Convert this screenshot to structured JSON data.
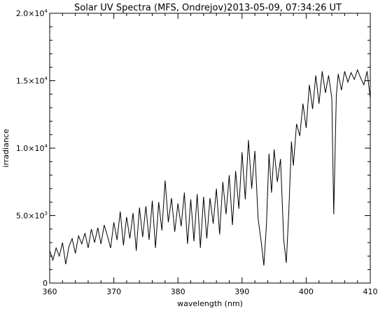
{
  "chart_data": {
    "type": "line",
    "title": "Solar UV Spectra (MFS, Ondrejov)2013-05-09, 07:34:26 UT",
    "xlabel": "wavelength (nm)",
    "ylabel": "irradiance",
    "xlim": [
      360,
      410
    ],
    "ylim": [
      0,
      20000
    ],
    "x_ticks": [
      360,
      370,
      380,
      390,
      400,
      410
    ],
    "x_tick_labels": [
      "360",
      "370",
      "380",
      "390",
      "400",
      "410"
    ],
    "y_ticks": [
      0,
      5000,
      10000,
      15000,
      20000
    ],
    "y_tick_labels": [
      {
        "mant": "0",
        "exp": ""
      },
      {
        "mant": "5.0×10",
        "exp": "3"
      },
      {
        "mant": "1.0×10",
        "exp": "4"
      },
      {
        "mant": "1.5×10",
        "exp": "4"
      },
      {
        "mant": "2.0×10",
        "exp": "4"
      }
    ],
    "grid": false,
    "legend": "none",
    "line_color": "#000000",
    "series": [
      {
        "x": [
          360.0,
          360.5,
          361.0,
          361.5,
          362.0,
          362.5,
          363.0,
          363.5,
          364.0,
          364.5,
          365.0,
          365.5,
          366.0,
          366.5,
          367.0,
          367.5,
          368.0,
          368.5,
          369.0,
          369.5,
          370.0,
          370.5,
          371.0,
          371.5,
          372.0,
          372.5,
          373.0,
          373.5,
          374.0,
          374.5,
          375.0,
          375.5,
          376.0,
          376.5,
          377.0,
          377.5,
          378.0,
          378.5,
          379.0,
          379.5,
          380.0,
          380.5,
          381.0,
          381.5,
          382.0,
          382.5,
          383.0,
          383.5,
          384.0,
          384.5,
          385.0,
          385.5,
          386.0,
          386.5,
          387.0,
          387.5,
          388.0,
          388.5,
          389.0,
          389.5,
          390.0,
          390.5,
          391.0,
          391.5,
          392.0,
          392.5,
          393.0,
          393.4,
          393.8,
          394.2,
          394.6,
          395.0,
          395.5,
          396.0,
          396.5,
          396.9,
          397.3,
          397.7,
          398.0,
          398.5,
          399.0,
          399.5,
          400.0,
          400.5,
          401.0,
          401.5,
          402.0,
          402.5,
          403.0,
          403.5,
          404.0,
          404.3,
          404.7,
          405.0,
          405.5,
          406.0,
          406.5,
          407.0,
          407.5,
          408.0,
          408.5,
          409.0,
          409.5,
          410.0
        ],
        "y": [
          2400,
          1700,
          2600,
          2000,
          3000,
          1400,
          2700,
          3300,
          2200,
          3500,
          2900,
          3700,
          2600,
          4000,
          3000,
          4100,
          2900,
          4300,
          3500,
          2600,
          4500,
          3200,
          5300,
          2800,
          4900,
          3300,
          5200,
          2400,
          5600,
          3400,
          5700,
          3200,
          6100,
          2600,
          6000,
          3900,
          7600,
          4500,
          6300,
          3800,
          5900,
          4200,
          6700,
          2900,
          6200,
          3100,
          6600,
          2600,
          6400,
          3300,
          6300,
          4400,
          7000,
          3600,
          7500,
          5100,
          8000,
          4300,
          8300,
          5500,
          9700,
          6200,
          10600,
          7000,
          9800,
          4800,
          3000,
          1300,
          4300,
          9600,
          6700,
          9900,
          7500,
          9200,
          3200,
          1500,
          5400,
          10500,
          8700,
          11800,
          10900,
          13300,
          11500,
          14700,
          12900,
          15400,
          13300,
          15700,
          14100,
          15400,
          13700,
          5100,
          13900,
          15500,
          14300,
          15700,
          14900,
          15600,
          15100,
          15800,
          15200,
          14700,
          15700,
          13700
        ]
      }
    ]
  }
}
